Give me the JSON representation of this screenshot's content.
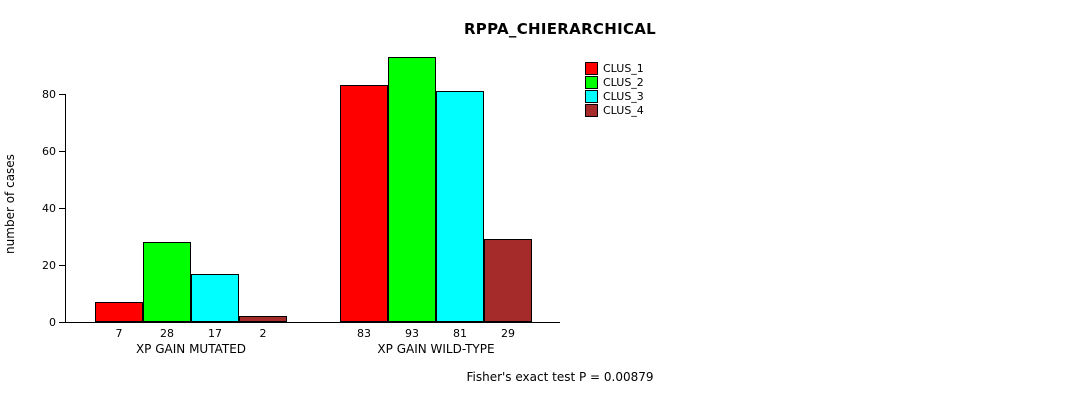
{
  "title": "RPPA_CHIERARCHICAL",
  "ylabel": "number of cases",
  "footer": "Fisher's exact test P = 0.00879",
  "chart_data": {
    "type": "bar",
    "title": "RPPA_CHIERARCHICAL",
    "xlabel": "",
    "ylabel": "number of cases",
    "ylim": [
      0,
      95
    ],
    "yticks": [
      0,
      20,
      40,
      60,
      80
    ],
    "grid": false,
    "legend_position": "top-right",
    "categories": [
      "XP GAIN MUTATED",
      "XP GAIN WILD-TYPE"
    ],
    "series": [
      {
        "name": "CLUS_1",
        "color": "#ff0000",
        "values": [
          7,
          83
        ]
      },
      {
        "name": "CLUS_2",
        "color": "#00ff00",
        "values": [
          28,
          93
        ]
      },
      {
        "name": "CLUS_3",
        "color": "#00ffff",
        "values": [
          17,
          81
        ]
      },
      {
        "name": "CLUS_4",
        "color": "#a52a2a",
        "values": [
          2,
          29
        ]
      }
    ],
    "bar_value_labels_shown": true,
    "annotation": "Fisher's exact test P = 0.00879"
  }
}
